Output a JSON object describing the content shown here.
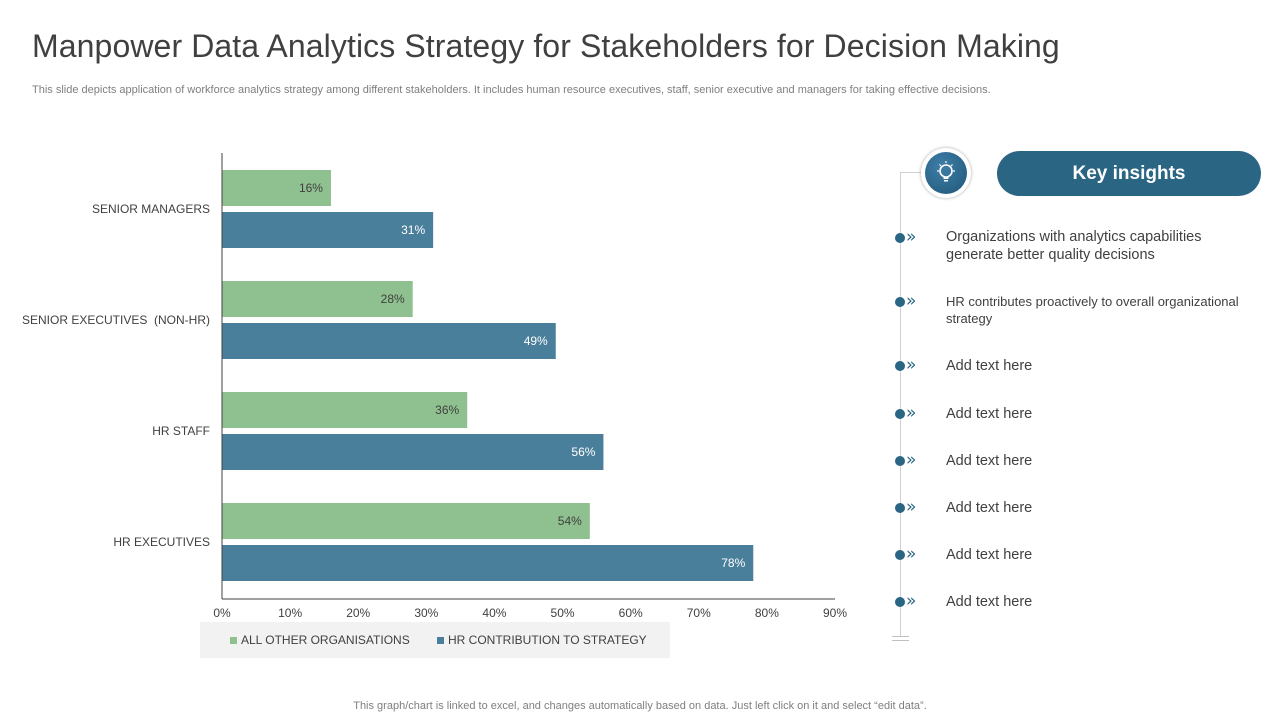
{
  "slide": {
    "title": "Manpower Data Analytics Strategy for Stakeholders for Decision Making",
    "subtitle": "This slide depicts application of workforce analytics strategy among different stakeholders. It includes human resource executives, staff, senior executive and managers for taking effective decisions.",
    "footer": "This graph/chart is linked to excel,  and changes automatically based on data. Just left click on it and select “edit data”."
  },
  "chart_data": {
    "type": "bar",
    "orientation": "horizontal",
    "categories": [
      "SENIOR MANAGERS",
      "SENIOR EXECUTIVES  (NON-HR)",
      "HR STAFF",
      "HR EXECUTIVES"
    ],
    "series": [
      {
        "name": "ALL OTHER ORGANISATIONS",
        "color": "#8fc08f",
        "values": [
          16,
          28,
          36,
          54
        ],
        "labels": [
          "16%",
          "28%",
          "36%",
          "54%"
        ]
      },
      {
        "name": "HR CONTRIBUTION TO STRATEGY",
        "color": "#4a7f9c",
        "values": [
          31,
          49,
          56,
          78
        ],
        "labels": [
          "31%",
          "49%",
          "56%",
          "78%"
        ]
      }
    ],
    "xlim": [
      0,
      90
    ],
    "xticks": [
      0,
      10,
      20,
      30,
      40,
      50,
      60,
      70,
      80,
      90
    ],
    "xtick_labels": [
      "0%",
      "10%",
      "20%",
      "30%",
      "40%",
      "50%",
      "60%",
      "70%",
      "80%",
      "90%"
    ],
    "legend_position": "bottom",
    "grid": false
  },
  "insights": {
    "heading": "Key insights",
    "icon": "lightbulb-icon",
    "items": [
      {
        "text": "Organizations with analytics capabilities generate better quality decisions",
        "icon": "chevron-double-right-icon"
      },
      {
        "text": "HR contributes proactively to overall organizational strategy",
        "icon": "chevron-double-right-icon"
      },
      {
        "text": "Add text here",
        "icon": "chevron-double-right-icon"
      },
      {
        "text": "Add text here",
        "icon": "chevron-double-right-icon"
      },
      {
        "text": "Add text here",
        "icon": "chevron-double-right-icon"
      },
      {
        "text": "Add text here",
        "icon": "chevron-double-right-icon"
      },
      {
        "text": "Add text here",
        "icon": "chevron-double-right-icon"
      },
      {
        "text": "Add text here",
        "icon": "chevron-double-right-icon"
      }
    ]
  }
}
